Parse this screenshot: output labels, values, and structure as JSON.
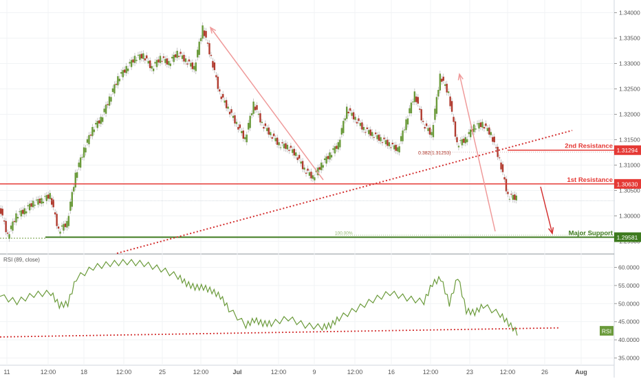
{
  "chart_data": [
    {
      "type": "candlestick",
      "title": "",
      "x_tick_labels": [
        "11",
        "12:00",
        "18",
        "12:00",
        "25",
        "12:00",
        "Jul",
        "12:00",
        "9",
        "12:00",
        "16",
        "12:00",
        "23",
        "12:00",
        "26",
        "Aug"
      ],
      "y_tick_labels": [
        "1.34000",
        "1.33500",
        "1.33000",
        "1.32500",
        "1.32000",
        "1.31500",
        "1.31000",
        "1.30500",
        "1.30000",
        "1.29500"
      ],
      "ylim": [
        1.2925,
        1.3425
      ],
      "price_path": [
        [
          0,
          1.302
        ],
        [
          1,
          1.296
        ],
        [
          2,
          1.3
        ],
        [
          3,
          1.301
        ],
        [
          4,
          1.3025
        ],
        [
          5,
          1.303
        ],
        [
          6,
          1.304
        ],
        [
          7,
          1.297
        ],
        [
          8,
          1.2985
        ],
        [
          9,
          1.308
        ],
        [
          10,
          1.313
        ],
        [
          11,
          1.317
        ],
        [
          12,
          1.319
        ],
        [
          13,
          1.323
        ],
        [
          14,
          1.327
        ],
        [
          15,
          1.329
        ],
        [
          16,
          1.331
        ],
        [
          17,
          1.3315
        ],
        [
          18,
          1.329
        ],
        [
          19,
          1.331
        ],
        [
          20,
          1.33
        ],
        [
          21,
          1.332
        ],
        [
          22,
          1.3305
        ],
        [
          23,
          1.329
        ],
        [
          24,
          1.337
        ],
        [
          25,
          1.331
        ],
        [
          26,
          1.324
        ],
        [
          27,
          1.321
        ],
        [
          28,
          1.318
        ],
        [
          29,
          1.315
        ],
        [
          30,
          1.322
        ],
        [
          31,
          1.318
        ],
        [
          32,
          1.316
        ],
        [
          33,
          1.314
        ],
        [
          34,
          1.3135
        ],
        [
          35,
          1.312
        ],
        [
          36,
          1.309
        ],
        [
          37,
          1.3075
        ],
        [
          38,
          1.31
        ],
        [
          39,
          1.312
        ],
        [
          40,
          1.314
        ],
        [
          41,
          1.321
        ],
        [
          42,
          1.319
        ],
        [
          43,
          1.317
        ],
        [
          44,
          1.316
        ],
        [
          45,
          1.315
        ],
        [
          46,
          1.314
        ],
        [
          47,
          1.313
        ],
        [
          48,
          1.3185
        ],
        [
          49,
          1.324
        ],
        [
          50,
          1.318
        ],
        [
          51,
          1.316
        ],
        [
          52,
          1.3275
        ],
        [
          53,
          1.324
        ],
        [
          54,
          1.314
        ],
        [
          55,
          1.315
        ],
        [
          56,
          1.3175
        ],
        [
          57,
          1.318
        ],
        [
          58,
          1.316
        ],
        [
          59,
          1.311
        ],
        [
          60,
          1.3038
        ],
        [
          61,
          1.3035
        ]
      ],
      "price_scale_badges": [
        {
          "label": "1.31294",
          "color": "#e53935"
        },
        {
          "label": "1.30630",
          "color": "#e53935"
        },
        {
          "label": "1.29581",
          "color": "#3d7a1e"
        }
      ],
      "levels": [
        {
          "name": "2nd Resistance",
          "label": "2nd Resistance",
          "value": 1.31294,
          "color": "#e53935"
        },
        {
          "name": "1st Resistance",
          "label": "1st Resistance",
          "value": 1.3063,
          "color": "#e53935"
        },
        {
          "name": "Major Support",
          "label": "Major Support",
          "value": 1.29581,
          "color": "#3d7a1e"
        }
      ],
      "annotations": {
        "fib_382": "0.382(1.31253)",
        "fib_100": "100.00%"
      }
    },
    {
      "type": "line",
      "title": "RSI (89, close)",
      "badge": "RSI",
      "y_tick_labels": [
        "60.0000",
        "55.0000",
        "50.0000",
        "45.0000",
        "40.0000",
        "35.0000"
      ],
      "ylim": [
        33.0,
        63.5
      ],
      "series": [
        {
          "color": "#6a9a3a",
          "values": [
            [
              0,
              52.0
            ],
            [
              2,
              50.5
            ],
            [
              4,
              52.5
            ],
            [
              6,
              53.0
            ],
            [
              7,
              49.5
            ],
            [
              8,
              50.0
            ],
            [
              9,
              57.0
            ],
            [
              11,
              60.0
            ],
            [
              13,
              61.0
            ],
            [
              15,
              61.5
            ],
            [
              17,
              61.0
            ],
            [
              19,
              59.5
            ],
            [
              21,
              57.5
            ],
            [
              22,
              55.5
            ],
            [
              23,
              54.5
            ],
            [
              24,
              54.5
            ],
            [
              25,
              53.5
            ],
            [
              26,
              52.0
            ],
            [
              27,
              48.5
            ],
            [
              29,
              44.0
            ],
            [
              30,
              45.5
            ],
            [
              31,
              44.5
            ],
            [
              32,
              44.5
            ],
            [
              34,
              46.0
            ],
            [
              36,
              44.0
            ],
            [
              38,
              43.5
            ],
            [
              39,
              44.0
            ],
            [
              40,
              46.0
            ],
            [
              42,
              48.5
            ],
            [
              44,
              51.0
            ],
            [
              46,
              53.0
            ],
            [
              48,
              51.5
            ],
            [
              50,
              50.5
            ],
            [
              51,
              55.5
            ],
            [
              52,
              57.0
            ],
            [
              53,
              50.0
            ],
            [
              54,
              57.5
            ],
            [
              55,
              48.0
            ],
            [
              56,
              47.5
            ],
            [
              57,
              49.5
            ],
            [
              59,
              47.0
            ],
            [
              60,
              44.5
            ],
            [
              61,
              42.0
            ]
          ]
        }
      ],
      "trendline_label": ""
    }
  ]
}
